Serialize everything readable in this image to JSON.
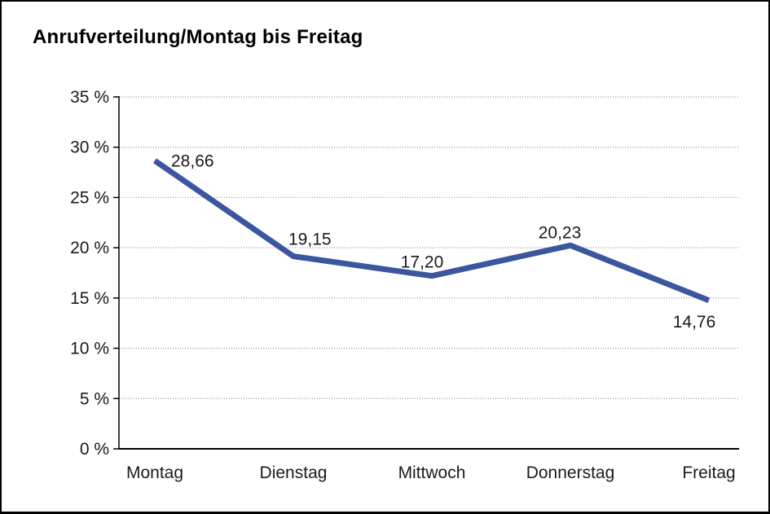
{
  "title": "Anrufverteilung/Montag bis Freitag",
  "chart_data": {
    "type": "line",
    "title": "Anrufverteilung/Montag bis Freitag",
    "categories": [
      "Montag",
      "Dienstag",
      "Mittwoch",
      "Donnerstag",
      "Freitag"
    ],
    "values": [
      28.66,
      19.15,
      17.2,
      20.23,
      14.76
    ],
    "value_labels": [
      "28,66",
      "19,15",
      "17,20",
      "20,23",
      "14,76"
    ],
    "series_name": "Anrufverteilung",
    "xlabel": "",
    "ylabel": "",
    "ylim": [
      0,
      35
    ],
    "y_tick_step": 5,
    "y_ticks": [
      0,
      5,
      10,
      15,
      20,
      25,
      30,
      35
    ],
    "y_tick_labels": [
      "0 %",
      "5 %",
      "10 %",
      "15 %",
      "20 %",
      "25 %",
      "30 %",
      "35 %"
    ],
    "grid": "horizontal-dotted",
    "legend": "none",
    "markers": "none"
  },
  "colors": {
    "line": "#3B569E",
    "grid": "#7f7f7f",
    "axis": "#000000",
    "text": "#1a1a1a"
  }
}
